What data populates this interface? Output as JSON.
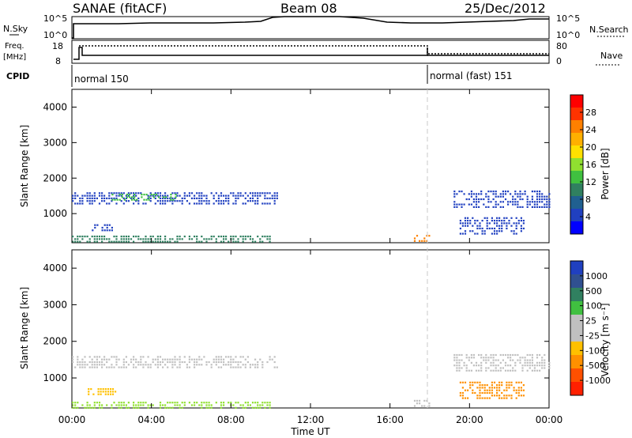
{
  "header": {
    "radar": "SANAE (fitACF)",
    "beam": "Beam 08",
    "date": "25/Dec/2012"
  },
  "panels": {
    "nsky": {
      "left_label": "N.Sky",
      "right_label": "N.Search",
      "left_ticks": [
        "10^5",
        "10^0"
      ],
      "right_ticks": [
        "10^5",
        "10^0"
      ]
    },
    "freq": {
      "left_label_1": "Freq.",
      "left_label_2": "[MHz]",
      "right_label": "Nave",
      "left_ticks": [
        "18",
        "8"
      ],
      "right_ticks": [
        "80",
        "0"
      ]
    },
    "cpid": {
      "label": "CPID",
      "modes": [
        {
          "name": "normal 150",
          "start_hour": 0
        },
        {
          "name": "normal (fast) 151",
          "start_hour": 18
        }
      ]
    }
  },
  "colorbars": {
    "power": {
      "label": "Power [dB]",
      "ticks": [
        "28",
        "24",
        "20",
        "16",
        "12",
        "8",
        "4"
      ],
      "colors": [
        "#ff0000",
        "#ff3300",
        "#ff8000",
        "#ffb000",
        "#ffe000",
        "#90e030",
        "#40c040",
        "#308060",
        "#206090",
        "#2040c0",
        "#0000ff"
      ]
    },
    "velocity": {
      "label": "Velocity [m s⁻¹]",
      "ticks": [
        "1000",
        "500",
        "100",
        "25",
        "-25",
        "-100",
        "-500",
        "-1000"
      ],
      "colors": [
        "#2040c0",
        "#305090",
        "#308060",
        "#40c040",
        "#c0c0c0",
        "#c0c0c0",
        "#ffc000",
        "#ff9000",
        "#ff5000",
        "#ff2000"
      ]
    }
  },
  "chart_data": [
    {
      "type": "heatmap",
      "name": "power-panel",
      "ylabel": "Slant Range [km]",
      "xlabel": "",
      "ylim": [
        180,
        4500
      ],
      "xlim": [
        0,
        24
      ],
      "yticks": [
        "4000",
        "3000",
        "2000",
        "1000"
      ],
      "yticks_values": [
        4000,
        3000,
        2000,
        1000
      ],
      "patches": [
        {
          "x0": 0.0,
          "x1": 10.4,
          "y0": 1250,
          "y1": 1600,
          "color": "#2040c0"
        },
        {
          "x0": 2.0,
          "x1": 5.2,
          "y0": 1400,
          "y1": 1560,
          "color": "#40c040"
        },
        {
          "x0": 1.0,
          "x1": 2.0,
          "y0": 550,
          "y1": 700,
          "color": "#2040c0"
        },
        {
          "x0": 0.0,
          "x1": 10.0,
          "y0": 180,
          "y1": 380,
          "color": "#308060"
        },
        {
          "x0": 17.2,
          "x1": 18.0,
          "y0": 250,
          "y1": 400,
          "color": "#ff8000"
        },
        {
          "x0": 19.2,
          "x1": 24.0,
          "y0": 1200,
          "y1": 1650,
          "color": "#2040c0"
        },
        {
          "x0": 19.5,
          "x1": 22.8,
          "y0": 450,
          "y1": 900,
          "color": "#2040c0"
        }
      ]
    },
    {
      "type": "heatmap",
      "name": "velocity-panel",
      "ylabel": "Slant Range [km]",
      "xlabel": "Time UT",
      "ylim": [
        180,
        4500
      ],
      "xlim": [
        0,
        24
      ],
      "yticks": [
        "4000",
        "3000",
        "2000",
        "1000"
      ],
      "yticks_values": [
        4000,
        3000,
        2000,
        1000
      ],
      "xticks": [
        "00:00",
        "04:00",
        "08:00",
        "12:00",
        "16:00",
        "20:00",
        "00:00"
      ],
      "xticks_values": [
        0,
        4,
        8,
        12,
        16,
        20,
        24
      ],
      "patches": [
        {
          "x0": 0.0,
          "x1": 10.4,
          "y0": 1250,
          "y1": 1600,
          "color": "#c0c0c0"
        },
        {
          "x0": 0.8,
          "x1": 2.2,
          "y0": 550,
          "y1": 720,
          "color": "#ffc000"
        },
        {
          "x0": 0.0,
          "x1": 10.0,
          "y0": 180,
          "y1": 350,
          "color": "#90e030"
        },
        {
          "x0": 17.2,
          "x1": 18.0,
          "y0": 250,
          "y1": 400,
          "color": "#c0c0c0"
        },
        {
          "x0": 19.2,
          "x1": 24.0,
          "y0": 1200,
          "y1": 1650,
          "color": "#c0c0c0"
        },
        {
          "x0": 19.5,
          "x1": 22.8,
          "y0": 450,
          "y1": 900,
          "color": "#ff9000"
        }
      ]
    }
  ]
}
